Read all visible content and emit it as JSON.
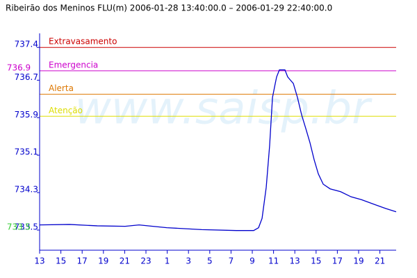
{
  "chart_data": {
    "type": "line",
    "title": "Ribeirão dos Meninos FLU(m) 2006-01-28 13:40:00.0 – 2006-01-29 22:40:00.0",
    "watermark": "www.saisp.br",
    "x": [
      13.0,
      15.81,
      18.42,
      21.04,
      22.35,
      23.65,
      24.96,
      28.23,
      31.5,
      33.13,
      33.59,
      33.92,
      34.31,
      34.63,
      34.9,
      35.16,
      35.29,
      35.55,
      36.07,
      36.33,
      36.59,
      36.86,
      37.25,
      37.64,
      38.03,
      38.42,
      38.82,
      39.21,
      39.67,
      40.32,
      41.3,
      42.29,
      43.26,
      44.57,
      45.55,
      46.53
    ],
    "series": [
      {
        "color": "#0000cc",
        "values": [
          733.61,
          733.62,
          733.59,
          733.58,
          733.61,
          733.58,
          733.55,
          733.51,
          733.49,
          733.49,
          733.55,
          733.75,
          734.41,
          735.3,
          736.33,
          736.63,
          736.77,
          736.92,
          736.92,
          736.77,
          736.7,
          736.63,
          736.33,
          735.96,
          735.67,
          735.37,
          735.0,
          734.7,
          734.48,
          734.38,
          734.32,
          734.21,
          734.15,
          734.04,
          733.96,
          733.89
        ]
      }
    ],
    "thresholds": [
      {
        "name": "Extravasamento",
        "value": 737.4,
        "color": "#cc0000"
      },
      {
        "name": "Emergencia",
        "value": 736.9,
        "color": "#cc00cc"
      },
      {
        "name": "Alerta",
        "value": 736.4,
        "color": "#dd7700"
      },
      {
        "name": "Atenção",
        "value": 735.93,
        "color": "#dddd00"
      }
    ],
    "markers": [
      {
        "value": 736.9,
        "color": "#cc00cc"
      },
      {
        "value": 733.5,
        "color": "#33cc33"
      }
    ],
    "xlim": [
      13,
      46.53
    ],
    "xticks": [
      13,
      15,
      17,
      19,
      21,
      23,
      {
        "value": 25,
        "label": "1"
      },
      {
        "value": 27,
        "label": "3"
      },
      {
        "value": 29,
        "label": "5"
      },
      {
        "value": 31,
        "label": "7"
      },
      {
        "value": 33,
        "label": "9"
      },
      {
        "value": 35,
        "label": "11"
      },
      {
        "value": 37,
        "label": "13"
      },
      {
        "value": 39,
        "label": "15"
      },
      {
        "value": 41,
        "label": "17"
      },
      {
        "value": 43,
        "label": "19"
      },
      {
        "value": 45,
        "label": "21"
      }
    ],
    "ylim": [
      733.07,
      737.7
    ],
    "yticks": [
      733.5,
      734.3,
      735.1,
      735.9,
      736.7,
      737.4
    ]
  }
}
